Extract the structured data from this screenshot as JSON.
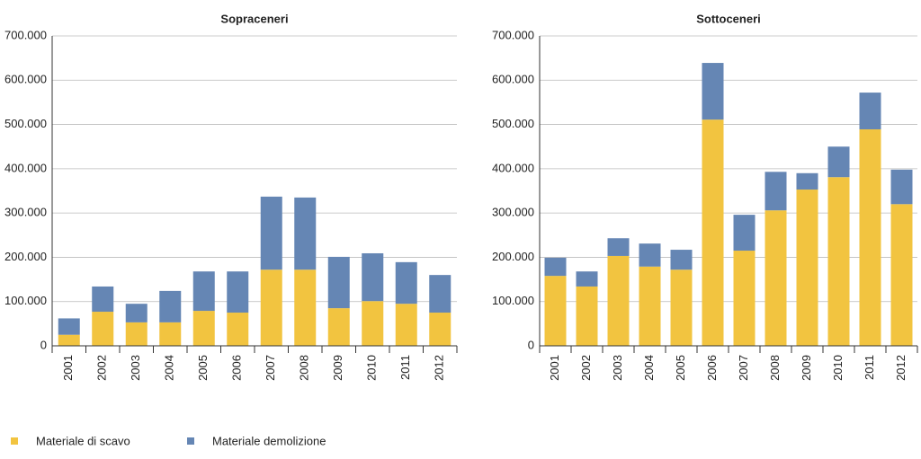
{
  "chart_data": [
    {
      "type": "stacked_bar",
      "title": "Sopraceneri",
      "categories": [
        "2001",
        "2002",
        "2003",
        "2004",
        "2005",
        "2006",
        "2007",
        "2008",
        "2009",
        "2010",
        "2011",
        "2012"
      ],
      "series": [
        {
          "name": "Materiale di scavo",
          "color": "#f2c440",
          "values": [
            25000,
            77000,
            53000,
            53000,
            79000,
            75000,
            172000,
            172000,
            85000,
            101000,
            95000,
            75000
          ]
        },
        {
          "name": "Materiale demolizione",
          "color": "#6586b4",
          "values": [
            37000,
            57000,
            42000,
            71000,
            89000,
            93000,
            165000,
            163000,
            116000,
            108000,
            94000,
            85000
          ]
        }
      ],
      "ylim": [
        0,
        700000
      ],
      "yticks": [
        0,
        {
          "value": 100000,
          "label": "100.000"
        },
        {
          "value": 200000,
          "label": "200.000"
        },
        {
          "value": 300000,
          "label": "300.000"
        },
        {
          "value": 400000,
          "label": "400.000"
        },
        {
          "value": 500000,
          "label": "500.000"
        },
        {
          "value": 600000,
          "label": "600.000"
        },
        {
          "value": 700000,
          "label": "700.000"
        }
      ],
      "grid": true
    },
    {
      "type": "stacked_bar",
      "title": "Sottoceneri",
      "categories": [
        "2001",
        "2002",
        "2003",
        "2004",
        "2005",
        "2006",
        "2007",
        "2008",
        "2009",
        "2010",
        "2011",
        "2012"
      ],
      "series": [
        {
          "color": "#f2c440",
          "values": [
            158000,
            134000,
            203000,
            179000,
            172000,
            511000,
            215000,
            306000,
            353000,
            381000,
            489000,
            320000
          ]
        },
        {
          "color": "#6586b4",
          "values": [
            41000,
            34000,
            40000,
            52000,
            45000,
            128000,
            81000,
            87000,
            37000,
            69000,
            83000,
            78000
          ]
        }
      ],
      "ylim": [
        0,
        700000
      ],
      "yticks": [
        0,
        {
          "value": 100000,
          "label": "100.000"
        },
        {
          "value": 200000,
          "label": "200.000"
        },
        {
          "value": 300000,
          "label": "300.000"
        },
        {
          "value": 400000,
          "label": "400.000"
        },
        {
          "value": 500000,
          "label": "500.000"
        },
        {
          "value": 600000,
          "label": "600.000"
        },
        {
          "value": 700000,
          "label": "700.000"
        }
      ],
      "grid": true
    }
  ]
}
